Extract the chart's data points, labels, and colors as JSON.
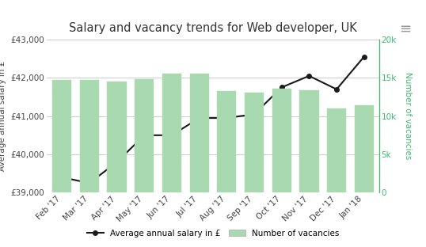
{
  "title": "Salary and vacancy trends for Web developer, UK",
  "categories": [
    "Feb '17",
    "Mar '17",
    "Apr '17",
    "May '17",
    "Jun '17",
    "Jul '17",
    "Aug '17",
    "Sep '17",
    "Oct '17",
    "Nov '17",
    "Dec '17",
    "Jan '18"
  ],
  "salary": [
    39400,
    39250,
    39800,
    40500,
    40500,
    40950,
    40950,
    41050,
    41750,
    42050,
    41700,
    42550
  ],
  "vacancies": [
    14700,
    14700,
    14500,
    14800,
    15500,
    15500,
    13300,
    13100,
    13600,
    13400,
    11000,
    11400
  ],
  "salary_ylim": [
    39000,
    43000
  ],
  "vacancy_ylim": [
    0,
    20000
  ],
  "salary_yticks": [
    39000,
    40000,
    41000,
    42000,
    43000
  ],
  "salary_ytick_labels": [
    "£39,000",
    "£40,000",
    "£41,000",
    "£42,000",
    "£43,000"
  ],
  "vacancy_yticks": [
    0,
    5000,
    10000,
    15000,
    20000
  ],
  "vacancy_ytick_labels": [
    "0",
    "5k",
    "10k",
    "15k",
    "20k"
  ],
  "bar_color": "#a8d9b0",
  "bar_edge_color": "#a8d9b0",
  "line_color": "#1a1a1a",
  "marker_color": "#1a1a1a",
  "left_axis_color": "#444444",
  "right_axis_color": "#3dba6f",
  "ylabel_left": "Average annual salary in £",
  "ylabel_right": "Number of vacancies",
  "legend_salary": "Average annual salary in £",
  "legend_vacancies": "Number of vacancies",
  "bg_color": "#ffffff",
  "card_bg": "#ffffff",
  "grid_color": "#cccccc",
  "title_fontsize": 10.5,
  "axis_label_fontsize": 7.5,
  "tick_fontsize": 7.5
}
